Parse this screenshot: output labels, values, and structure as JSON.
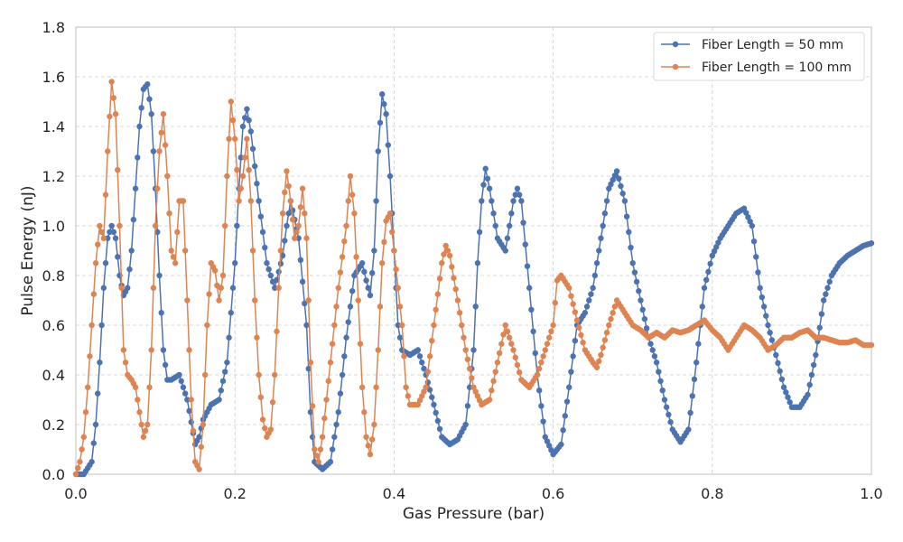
{
  "chart_data": {
    "type": "line",
    "xlabel": "Gas Pressure (bar)",
    "ylabel": "Pulse Energy (nJ)",
    "xlim": [
      0,
      1
    ],
    "ylim": [
      0,
      1.8
    ],
    "xticks": [
      "0.0",
      "0.2",
      "0.4",
      "0.6",
      "0.8",
      "1.0"
    ],
    "yticks": [
      "0.0",
      "0.2",
      "0.4",
      "0.6",
      "0.8",
      "1.0",
      "1.2",
      "1.4",
      "1.6",
      "1.8"
    ],
    "grid": true,
    "legend_position": "top-right",
    "series": [
      {
        "name": "Fiber Length = 50 mm",
        "color": "#4c72b0",
        "points": [
          [
            0.0,
            0.0
          ],
          [
            0.01,
            0.0
          ],
          [
            0.02,
            0.05
          ],
          [
            0.025,
            0.2
          ],
          [
            0.03,
            0.45
          ],
          [
            0.035,
            0.75
          ],
          [
            0.04,
            0.95
          ],
          [
            0.045,
            1.0
          ],
          [
            0.05,
            0.95
          ],
          [
            0.055,
            0.8
          ],
          [
            0.06,
            0.72
          ],
          [
            0.065,
            0.75
          ],
          [
            0.07,
            0.9
          ],
          [
            0.075,
            1.15
          ],
          [
            0.08,
            1.4
          ],
          [
            0.085,
            1.55
          ],
          [
            0.09,
            1.57
          ],
          [
            0.095,
            1.45
          ],
          [
            0.1,
            1.15
          ],
          [
            0.105,
            0.8
          ],
          [
            0.11,
            0.5
          ],
          [
            0.115,
            0.38
          ],
          [
            0.12,
            0.38
          ],
          [
            0.13,
            0.4
          ],
          [
            0.14,
            0.3
          ],
          [
            0.15,
            0.12
          ],
          [
            0.155,
            0.15
          ],
          [
            0.16,
            0.22
          ],
          [
            0.17,
            0.28
          ],
          [
            0.18,
            0.3
          ],
          [
            0.19,
            0.45
          ],
          [
            0.2,
            0.85
          ],
          [
            0.205,
            1.15
          ],
          [
            0.21,
            1.4
          ],
          [
            0.215,
            1.47
          ],
          [
            0.22,
            1.38
          ],
          [
            0.23,
            1.1
          ],
          [
            0.24,
            0.85
          ],
          [
            0.25,
            0.75
          ],
          [
            0.26,
            0.88
          ],
          [
            0.265,
            1.0
          ],
          [
            0.27,
            1.1
          ],
          [
            0.28,
            0.95
          ],
          [
            0.29,
            0.6
          ],
          [
            0.295,
            0.25
          ],
          [
            0.3,
            0.05
          ],
          [
            0.31,
            0.02
          ],
          [
            0.32,
            0.05
          ],
          [
            0.33,
            0.25
          ],
          [
            0.34,
            0.55
          ],
          [
            0.35,
            0.8
          ],
          [
            0.36,
            0.85
          ],
          [
            0.365,
            0.78
          ],
          [
            0.37,
            0.72
          ],
          [
            0.375,
            0.9
          ],
          [
            0.38,
            1.3
          ],
          [
            0.385,
            1.53
          ],
          [
            0.39,
            1.45
          ],
          [
            0.395,
            1.2
          ],
          [
            0.4,
            0.9
          ],
          [
            0.405,
            0.6
          ],
          [
            0.41,
            0.5
          ],
          [
            0.42,
            0.48
          ],
          [
            0.43,
            0.5
          ],
          [
            0.44,
            0.4
          ],
          [
            0.45,
            0.28
          ],
          [
            0.46,
            0.15
          ],
          [
            0.47,
            0.12
          ],
          [
            0.48,
            0.14
          ],
          [
            0.49,
            0.2
          ],
          [
            0.5,
            0.5
          ],
          [
            0.505,
            0.85
          ],
          [
            0.51,
            1.1
          ],
          [
            0.515,
            1.23
          ],
          [
            0.52,
            1.15
          ],
          [
            0.53,
            0.95
          ],
          [
            0.54,
            0.9
          ],
          [
            0.55,
            1.1
          ],
          [
            0.555,
            1.15
          ],
          [
            0.56,
            1.1
          ],
          [
            0.57,
            0.75
          ],
          [
            0.58,
            0.4
          ],
          [
            0.59,
            0.15
          ],
          [
            0.6,
            0.08
          ],
          [
            0.61,
            0.12
          ],
          [
            0.62,
            0.35
          ],
          [
            0.63,
            0.6
          ],
          [
            0.64,
            0.65
          ],
          [
            0.65,
            0.75
          ],
          [
            0.66,
            0.95
          ],
          [
            0.67,
            1.15
          ],
          [
            0.68,
            1.22
          ],
          [
            0.69,
            1.1
          ],
          [
            0.7,
            0.85
          ],
          [
            0.71,
            0.7
          ],
          [
            0.72,
            0.55
          ],
          [
            0.73,
            0.45
          ],
          [
            0.74,
            0.3
          ],
          [
            0.75,
            0.18
          ],
          [
            0.76,
            0.13
          ],
          [
            0.77,
            0.18
          ],
          [
            0.78,
            0.45
          ],
          [
            0.79,
            0.75
          ],
          [
            0.8,
            0.88
          ],
          [
            0.81,
            0.95
          ],
          [
            0.82,
            1.0
          ],
          [
            0.83,
            1.05
          ],
          [
            0.84,
            1.07
          ],
          [
            0.85,
            1.0
          ],
          [
            0.86,
            0.75
          ],
          [
            0.87,
            0.6
          ],
          [
            0.88,
            0.48
          ],
          [
            0.89,
            0.35
          ],
          [
            0.9,
            0.27
          ],
          [
            0.91,
            0.27
          ],
          [
            0.92,
            0.32
          ],
          [
            0.93,
            0.48
          ],
          [
            0.94,
            0.7
          ],
          [
            0.95,
            0.8
          ],
          [
            0.96,
            0.85
          ],
          [
            0.97,
            0.88
          ],
          [
            0.98,
            0.9
          ],
          [
            0.99,
            0.92
          ],
          [
            1.0,
            0.93
          ]
        ]
      },
      {
        "name": "Fiber Length = 100 mm",
        "color": "#dd8452",
        "points": [
          [
            0.0,
            0.0
          ],
          [
            0.005,
            0.05
          ],
          [
            0.01,
            0.15
          ],
          [
            0.015,
            0.35
          ],
          [
            0.02,
            0.6
          ],
          [
            0.025,
            0.85
          ],
          [
            0.03,
            1.0
          ],
          [
            0.035,
            0.95
          ],
          [
            0.04,
            1.3
          ],
          [
            0.045,
            1.58
          ],
          [
            0.05,
            1.45
          ],
          [
            0.055,
            1.0
          ],
          [
            0.06,
            0.5
          ],
          [
            0.065,
            0.4
          ],
          [
            0.07,
            0.38
          ],
          [
            0.075,
            0.35
          ],
          [
            0.08,
            0.25
          ],
          [
            0.085,
            0.15
          ],
          [
            0.09,
            0.2
          ],
          [
            0.095,
            0.5
          ],
          [
            0.1,
            1.0
          ],
          [
            0.105,
            1.3
          ],
          [
            0.11,
            1.45
          ],
          [
            0.115,
            1.2
          ],
          [
            0.12,
            0.9
          ],
          [
            0.125,
            0.85
          ],
          [
            0.13,
            1.1
          ],
          [
            0.135,
            1.1
          ],
          [
            0.14,
            0.7
          ],
          [
            0.145,
            0.3
          ],
          [
            0.15,
            0.05
          ],
          [
            0.155,
            0.02
          ],
          [
            0.16,
            0.2
          ],
          [
            0.165,
            0.6
          ],
          [
            0.17,
            0.85
          ],
          [
            0.175,
            0.82
          ],
          [
            0.18,
            0.7
          ],
          [
            0.185,
            0.8
          ],
          [
            0.19,
            1.2
          ],
          [
            0.195,
            1.5
          ],
          [
            0.2,
            1.35
          ],
          [
            0.205,
            1.1
          ],
          [
            0.21,
            1.2
          ],
          [
            0.215,
            1.35
          ],
          [
            0.22,
            1.1
          ],
          [
            0.225,
            0.7
          ],
          [
            0.23,
            0.4
          ],
          [
            0.235,
            0.22
          ],
          [
            0.24,
            0.15
          ],
          [
            0.245,
            0.18
          ],
          [
            0.25,
            0.4
          ],
          [
            0.255,
            0.75
          ],
          [
            0.26,
            1.05
          ],
          [
            0.265,
            1.22
          ],
          [
            0.27,
            1.1
          ],
          [
            0.275,
            0.95
          ],
          [
            0.28,
            1.0
          ],
          [
            0.285,
            1.15
          ],
          [
            0.29,
            0.95
          ],
          [
            0.295,
            0.45
          ],
          [
            0.3,
            0.1
          ],
          [
            0.305,
            0.05
          ],
          [
            0.31,
            0.15
          ],
          [
            0.32,
            0.45
          ],
          [
            0.33,
            0.75
          ],
          [
            0.34,
            1.0
          ],
          [
            0.345,
            1.2
          ],
          [
            0.35,
            1.05
          ],
          [
            0.355,
            0.7
          ],
          [
            0.36,
            0.35
          ],
          [
            0.365,
            0.15
          ],
          [
            0.37,
            0.08
          ],
          [
            0.375,
            0.2
          ],
          [
            0.38,
            0.5
          ],
          [
            0.385,
            0.85
          ],
          [
            0.39,
            1.02
          ],
          [
            0.395,
            1.05
          ],
          [
            0.4,
            0.9
          ],
          [
            0.41,
            0.6
          ],
          [
            0.415,
            0.35
          ],
          [
            0.42,
            0.28
          ],
          [
            0.43,
            0.28
          ],
          [
            0.44,
            0.35
          ],
          [
            0.45,
            0.6
          ],
          [
            0.46,
            0.85
          ],
          [
            0.465,
            0.92
          ],
          [
            0.47,
            0.88
          ],
          [
            0.48,
            0.7
          ],
          [
            0.49,
            0.5
          ],
          [
            0.5,
            0.35
          ],
          [
            0.51,
            0.28
          ],
          [
            0.52,
            0.3
          ],
          [
            0.53,
            0.45
          ],
          [
            0.54,
            0.6
          ],
          [
            0.55,
            0.5
          ],
          [
            0.56,
            0.38
          ],
          [
            0.57,
            0.35
          ],
          [
            0.58,
            0.4
          ],
          [
            0.59,
            0.5
          ],
          [
            0.6,
            0.6
          ],
          [
            0.605,
            0.78
          ],
          [
            0.61,
            0.8
          ],
          [
            0.62,
            0.75
          ],
          [
            0.63,
            0.62
          ],
          [
            0.64,
            0.5
          ],
          [
            0.65,
            0.45
          ],
          [
            0.655,
            0.43
          ],
          [
            0.66,
            0.48
          ],
          [
            0.67,
            0.6
          ],
          [
            0.68,
            0.7
          ],
          [
            0.69,
            0.65
          ],
          [
            0.7,
            0.6
          ],
          [
            0.71,
            0.58
          ],
          [
            0.72,
            0.55
          ],
          [
            0.73,
            0.57
          ],
          [
            0.74,
            0.55
          ],
          [
            0.75,
            0.58
          ],
          [
            0.76,
            0.57
          ],
          [
            0.77,
            0.58
          ],
          [
            0.78,
            0.6
          ],
          [
            0.79,
            0.62
          ],
          [
            0.8,
            0.58
          ],
          [
            0.81,
            0.55
          ],
          [
            0.82,
            0.5
          ],
          [
            0.83,
            0.55
          ],
          [
            0.84,
            0.6
          ],
          [
            0.85,
            0.58
          ],
          [
            0.86,
            0.55
          ],
          [
            0.87,
            0.5
          ],
          [
            0.88,
            0.52
          ],
          [
            0.89,
            0.55
          ],
          [
            0.9,
            0.55
          ],
          [
            0.91,
            0.57
          ],
          [
            0.92,
            0.58
          ],
          [
            0.93,
            0.55
          ],
          [
            0.94,
            0.55
          ],
          [
            0.95,
            0.54
          ],
          [
            0.96,
            0.53
          ],
          [
            0.97,
            0.53
          ],
          [
            0.98,
            0.54
          ],
          [
            0.99,
            0.52
          ],
          [
            1.0,
            0.52
          ]
        ]
      }
    ]
  }
}
